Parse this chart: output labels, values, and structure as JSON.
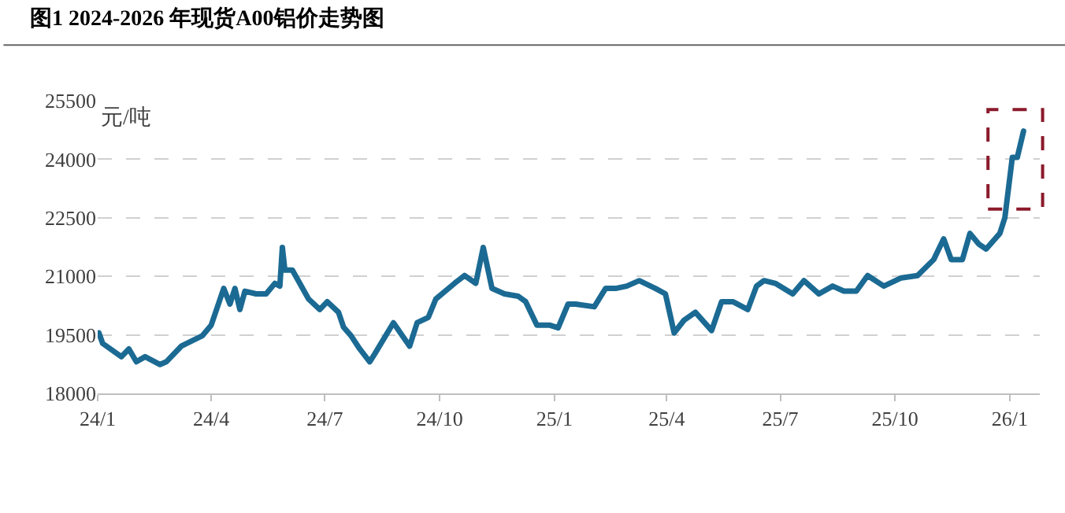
{
  "chart_data": {
    "type": "line",
    "title": "图1 2024-2026 年现货A00铝价走势图",
    "ylabel": "元/吨",
    "x": [
      "2024-01-02",
      "2024-01-05",
      "2024-01-20",
      "2024-01-26",
      "2024-02-01",
      "2024-02-08",
      "2024-02-20",
      "2024-02-25",
      "2024-03-08",
      "2024-03-25",
      "2024-04-01",
      "2024-04-11",
      "2024-04-16",
      "2024-04-20",
      "2024-04-24",
      "2024-04-28",
      "2024-05-07",
      "2024-05-15",
      "2024-05-22",
      "2024-05-26",
      "2024-05-28",
      "2024-05-30",
      "2024-06-05",
      "2024-06-18",
      "2024-06-27",
      "2024-07-03",
      "2024-07-12",
      "2024-07-16",
      "2024-07-22",
      "2024-07-29",
      "2024-08-06",
      "2024-08-10",
      "2024-08-25",
      "2024-09-07",
      "2024-09-13",
      "2024-09-22",
      "2024-09-28",
      "2024-10-13",
      "2024-10-21",
      "2024-10-30",
      "2024-11-05",
      "2024-11-12",
      "2024-11-22",
      "2024-12-03",
      "2024-12-09",
      "2024-12-18",
      "2024-12-28",
      "2025-01-04",
      "2025-01-12",
      "2025-01-18",
      "2025-02-02",
      "2025-02-11",
      "2025-02-19",
      "2025-02-28",
      "2025-03-10",
      "2025-03-23",
      "2025-03-31",
      "2025-04-07",
      "2025-04-15",
      "2025-04-24",
      "2025-05-07",
      "2025-05-15",
      "2025-05-24",
      "2025-06-05",
      "2025-06-12",
      "2025-06-18",
      "2025-06-27",
      "2025-07-11",
      "2025-07-20",
      "2025-08-01",
      "2025-08-12",
      "2025-08-21",
      "2025-08-31",
      "2025-09-09",
      "2025-09-22",
      "2025-10-06",
      "2025-10-19",
      "2025-11-01",
      "2025-11-09",
      "2025-11-15",
      "2025-11-24",
      "2025-11-30",
      "2025-12-07",
      "2025-12-13",
      "2025-12-24",
      "2025-12-28",
      "2026-01-03",
      "2026-01-07",
      "2026-01-12"
    ],
    "series": [
      {
        "color": "#1b6a93",
        "values": [
          19550,
          19280,
          18940,
          19140,
          18810,
          18940,
          18740,
          18810,
          19210,
          19480,
          19750,
          20690,
          20290,
          20690,
          20150,
          20620,
          20550,
          20550,
          20820,
          20750,
          21740,
          21160,
          21160,
          20420,
          20150,
          20350,
          20080,
          19700,
          19480,
          19140,
          18810,
          19010,
          19810,
          19210,
          19810,
          19950,
          20420,
          20820,
          21020,
          20820,
          21740,
          20690,
          20550,
          20490,
          20350,
          19750,
          19750,
          19680,
          20290,
          20290,
          20220,
          20690,
          20690,
          20750,
          20890,
          20690,
          20550,
          19550,
          19880,
          20080,
          19610,
          20350,
          20350,
          20150,
          20750,
          20890,
          20820,
          20550,
          20890,
          20550,
          20750,
          20620,
          20620,
          21020,
          20750,
          20960,
          21020,
          21430,
          21960,
          21430,
          21430,
          22100,
          21830,
          21700,
          22100,
          22500,
          24050,
          24050,
          24720
        ]
      }
    ],
    "xlim": [
      "2024-01-01",
      "2026-01-25"
    ],
    "xticks": [
      {
        "value": "2024-01-01",
        "label": "24/1"
      },
      {
        "value": "2024-04-01",
        "label": "24/4"
      },
      {
        "value": "2024-07-01",
        "label": "24/7"
      },
      {
        "value": "2024-10-01",
        "label": "24/10"
      },
      {
        "value": "2025-01-01",
        "label": "25/1"
      },
      {
        "value": "2025-04-01",
        "label": "25/4"
      },
      {
        "value": "2025-07-01",
        "label": "25/7"
      },
      {
        "value": "2025-10-01",
        "label": "25/10"
      },
      {
        "value": "2026-01-01",
        "label": "26/1"
      }
    ],
    "ylim": [
      18000,
      25500
    ],
    "yticks": [
      18000,
      19500,
      21000,
      22500,
      24000,
      25500
    ],
    "grid": "y",
    "legend": false,
    "marker": "none",
    "line_style": "solid"
  }
}
